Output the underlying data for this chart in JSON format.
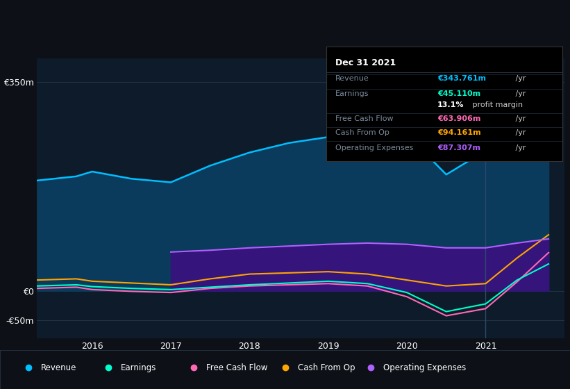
{
  "bg_color": "#0d1117",
  "plot_bg_color": "#0d1b2a",
  "grid_color": "#253a4a",
  "years": [
    2015.3,
    2015.8,
    2016.0,
    2016.5,
    2017.0,
    2017.5,
    2018.0,
    2018.5,
    2019.0,
    2019.5,
    2020.0,
    2020.5,
    2021.0,
    2021.4,
    2021.8
  ],
  "revenue": [
    185,
    192,
    200,
    188,
    182,
    210,
    232,
    248,
    258,
    268,
    262,
    195,
    235,
    300,
    344
  ],
  "earnings": [
    8,
    10,
    7,
    4,
    2,
    6,
    10,
    13,
    16,
    12,
    -3,
    -35,
    -22,
    18,
    45
  ],
  "fcf": [
    4,
    6,
    2,
    -1,
    -3,
    4,
    8,
    10,
    12,
    8,
    -10,
    -42,
    -30,
    15,
    64
  ],
  "cashfromop": [
    18,
    20,
    16,
    13,
    10,
    20,
    28,
    30,
    32,
    28,
    18,
    8,
    12,
    55,
    94
  ],
  "opex": [
    0,
    0,
    0,
    0,
    65,
    68,
    72,
    75,
    78,
    80,
    78,
    72,
    72,
    80,
    87
  ],
  "revenue_color": "#00bfff",
  "earnings_color": "#00ffcc",
  "fcf_color": "#ff69b4",
  "cashfromop_color": "#ffa500",
  "opex_color": "#b060ff",
  "revenue_fill": "#0a3a5c",
  "opex_fill": "#3a1080",
  "ylim": [
    -80,
    390
  ],
  "ytick_positions": [
    -50,
    0,
    350
  ],
  "ytick_labels": [
    "-€50m",
    "€0",
    "€350m"
  ],
  "xticks": [
    2016,
    2017,
    2018,
    2019,
    2020,
    2021
  ],
  "vline_x": 2021.0,
  "vline_color": "#2a4a6a",
  "tooltip": {
    "title": "Dec 31 2021",
    "title_color": "#ffffff",
    "bg_color": "#000000",
    "border_color": "#333333",
    "rows": [
      {
        "label": "Revenue",
        "label_color": "#7a8a9a",
        "value": "€343.761m",
        "suffix": " /yr",
        "value_color": "#00bfff"
      },
      {
        "label": "Earnings",
        "label_color": "#7a8a9a",
        "value": "€45.110m",
        "suffix": " /yr",
        "value_color": "#00ffcc"
      },
      {
        "label": "",
        "label_color": "",
        "value": "13.1%",
        "suffix": " profit margin",
        "value_color": "#ffffff"
      },
      {
        "label": "Free Cash Flow",
        "label_color": "#7a8a9a",
        "value": "€63.906m",
        "suffix": " /yr",
        "value_color": "#ff69b4"
      },
      {
        "label": "Cash From Op",
        "label_color": "#7a8a9a",
        "value": "€94.161m",
        "suffix": " /yr",
        "value_color": "#ffa500"
      },
      {
        "label": "Operating Expenses",
        "label_color": "#7a8a9a",
        "value": "€87.307m",
        "suffix": " /yr",
        "value_color": "#b060ff"
      }
    ]
  },
  "legend_items": [
    {
      "label": "Revenue",
      "color": "#00bfff"
    },
    {
      "label": "Earnings",
      "color": "#00ffcc"
    },
    {
      "label": "Free Cash Flow",
      "color": "#ff69b4"
    },
    {
      "label": "Cash From Op",
      "color": "#ffa500"
    },
    {
      "label": "Operating Expenses",
      "color": "#b060ff"
    }
  ]
}
